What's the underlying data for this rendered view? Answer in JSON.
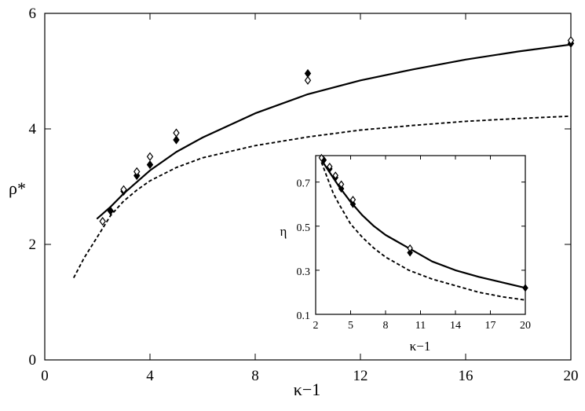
{
  "chart_data": [
    {
      "type": "scatter",
      "xlabel": "κ−1",
      "ylabel": "ρ*",
      "xlim": [
        0,
        20
      ],
      "ylim": [
        0,
        6
      ],
      "xticks": [
        0,
        4,
        8,
        12,
        16,
        20
      ],
      "yticks": [
        0,
        2,
        4,
        6
      ],
      "grid": false,
      "series": [
        {
          "kind": "line",
          "style": "solid",
          "x": [
            2,
            2.5,
            3,
            4,
            5,
            6,
            8,
            10,
            12,
            14,
            16,
            18,
            20
          ],
          "y": [
            2.45,
            2.65,
            2.88,
            3.28,
            3.6,
            3.85,
            4.27,
            4.6,
            4.84,
            5.03,
            5.2,
            5.34,
            5.46
          ]
        },
        {
          "kind": "line",
          "style": "dashed",
          "x": [
            1.1,
            1.5,
            2,
            2.5,
            3,
            3.5,
            4,
            5,
            6,
            8,
            10,
            12,
            14,
            16,
            18,
            20
          ],
          "y": [
            1.42,
            1.77,
            2.13,
            2.5,
            2.75,
            2.94,
            3.1,
            3.33,
            3.5,
            3.71,
            3.86,
            3.98,
            4.06,
            4.13,
            4.18,
            4.22
          ]
        },
        {
          "kind": "markers",
          "marker": "diamond-filled",
          "x": [
            2.5,
            3,
            3.5,
            4,
            5,
            10,
            20
          ],
          "y": [
            2.58,
            2.92,
            3.19,
            3.38,
            3.81,
            4.96,
            5.48
          ]
        },
        {
          "kind": "markers",
          "marker": "diamond-open",
          "x": [
            2.2,
            3,
            3.5,
            4,
            5,
            10,
            20
          ],
          "y": [
            2.4,
            2.95,
            3.26,
            3.52,
            3.93,
            4.84,
            5.53
          ]
        }
      ]
    },
    {
      "type": "scatter",
      "inset": true,
      "xlabel": "κ−1",
      "ylabel": "η",
      "xlim": [
        2,
        20
      ],
      "ylim": [
        0.1,
        0.82
      ],
      "xticks": [
        2,
        5,
        8,
        11,
        14,
        17,
        20
      ],
      "yticks": [
        0.1,
        0.3,
        0.5,
        0.7
      ],
      "grid": false,
      "series": [
        {
          "kind": "line",
          "style": "solid",
          "x": [
            2.5,
            3,
            3.5,
            4,
            5,
            6,
            7,
            8,
            10,
            12,
            14,
            16,
            18,
            20
          ],
          "y": [
            0.8,
            0.76,
            0.72,
            0.68,
            0.61,
            0.55,
            0.5,
            0.46,
            0.4,
            0.34,
            0.3,
            0.27,
            0.245,
            0.22
          ]
        },
        {
          "kind": "line",
          "style": "dashed",
          "x": [
            2.5,
            3,
            3.5,
            4,
            5,
            6,
            7,
            8,
            10,
            12,
            14,
            16,
            18,
            20
          ],
          "y": [
            0.79,
            0.72,
            0.65,
            0.6,
            0.51,
            0.45,
            0.4,
            0.36,
            0.3,
            0.26,
            0.23,
            0.2,
            0.18,
            0.165
          ]
        },
        {
          "kind": "markers",
          "marker": "diamond-filled",
          "x": [
            2.7,
            3.2,
            3.7,
            4.2,
            5.2,
            10.1,
            20
          ],
          "y": [
            0.8,
            0.76,
            0.72,
            0.67,
            0.6,
            0.38,
            0.22
          ]
        },
        {
          "kind": "markers",
          "marker": "diamond-open",
          "x": [
            2.5,
            3.2,
            3.7,
            4.2,
            5.2,
            10.1
          ],
          "y": [
            0.81,
            0.77,
            0.73,
            0.69,
            0.62,
            0.4
          ]
        }
      ]
    }
  ]
}
